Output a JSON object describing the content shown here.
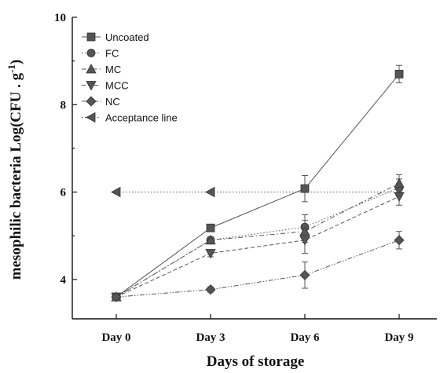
{
  "chart_data": {
    "type": "line",
    "xlabel": "Days of storage",
    "ylabel": "mesophilic bacteria Log(CFU . g",
    "ylabel_sup": "-1",
    "ylabel_close": ")",
    "categories": [
      "Day 0",
      "Day 3",
      "Day 6",
      "Day 9"
    ],
    "ylim": [
      3.1,
      10
    ],
    "yticks": [
      4,
      6,
      8,
      10
    ],
    "grid": false,
    "legend_position": "top-left",
    "series": [
      {
        "name": "Uncoated",
        "marker": "square",
        "dash": "solid",
        "color": "#555555",
        "values": [
          3.6,
          5.18,
          6.08,
          8.7
        ],
        "errors": [
          0.07,
          0.07,
          0.3,
          0.2
        ]
      },
      {
        "name": "FC",
        "marker": "circle",
        "dash": "dot",
        "color": "#555555",
        "values": [
          3.6,
          4.9,
          5.2,
          6.1
        ],
        "errors": [
          0.07,
          0.08,
          0.28,
          0.2
        ]
      },
      {
        "name": "MC",
        "marker": "triangle-up",
        "dash": "dashdot",
        "color": "#555555",
        "values": [
          3.6,
          4.9,
          5.1,
          6.2
        ],
        "errors": [
          0.07,
          0.07,
          0.25,
          0.2
        ]
      },
      {
        "name": "MCC",
        "marker": "triangle-down",
        "dash": "dash",
        "color": "#555555",
        "values": [
          3.6,
          4.6,
          4.9,
          5.9
        ],
        "errors": [
          0.07,
          0.08,
          0.3,
          0.2
        ]
      },
      {
        "name": "NC",
        "marker": "diamond",
        "dash": "dashdotdot",
        "color": "#555555",
        "values": [
          3.6,
          3.77,
          4.1,
          4.9
        ],
        "errors": [
          0.07,
          0.06,
          0.3,
          0.2
        ]
      },
      {
        "name": "Acceptance line",
        "marker": "triangle-left",
        "dash": "dot",
        "color": "#555555",
        "values": [
          6.0,
          6.0,
          6.0,
          6.0
        ],
        "errors": [
          0,
          0,
          0,
          0
        ]
      }
    ]
  }
}
